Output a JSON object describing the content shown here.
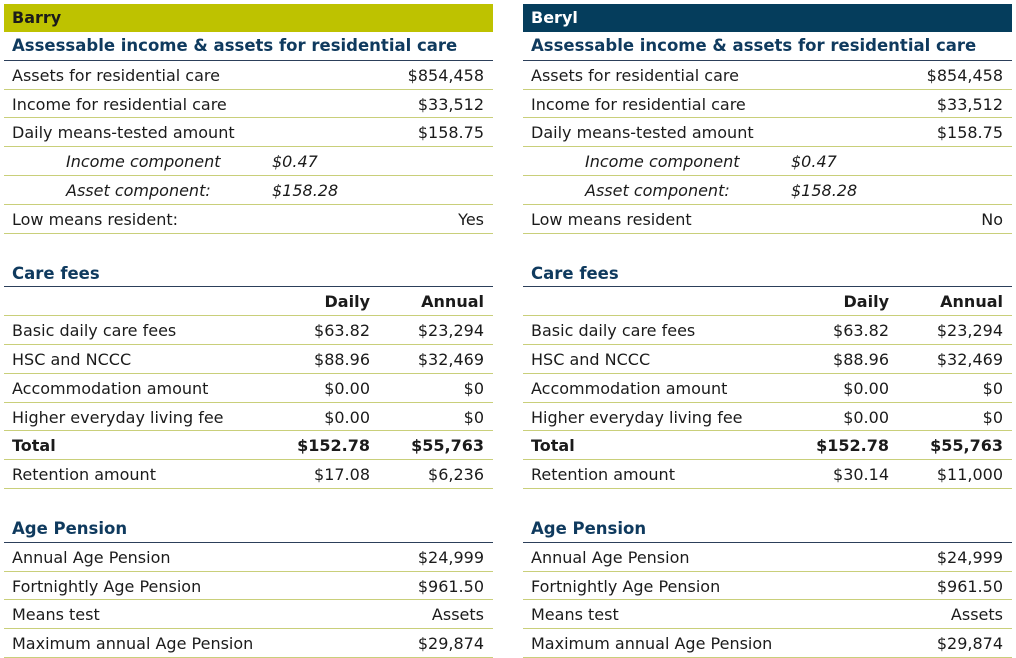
{
  "panels": [
    {
      "name": "Barry",
      "income": {
        "title": "Assessable income & assets for residential care",
        "rows": [
          {
            "label": "Assets for residential care",
            "value": "$854,458"
          },
          {
            "label": "Income for residential care",
            "value": "$33,512"
          },
          {
            "label": "Daily means-tested amount",
            "value": "$158.75"
          }
        ],
        "components": [
          {
            "label": "Income component",
            "value": "$0.47"
          },
          {
            "label": "Asset component:",
            "value": "$158.28"
          }
        ],
        "low_means": {
          "label": "Low means resident:",
          "value": "Yes"
        }
      },
      "care_fees": {
        "title": "Care fees",
        "col_daily": "Daily",
        "col_annual": "Annual",
        "rows": [
          {
            "label": "Basic daily care fees",
            "daily": "$63.82",
            "annual": "$23,294"
          },
          {
            "label": "HSC and NCCC",
            "daily": "$88.96",
            "annual": "$32,469"
          },
          {
            "label": "Accommodation amount",
            "daily": "$0.00",
            "annual": "$0"
          },
          {
            "label": "Higher everyday living fee",
            "daily": "$0.00",
            "annual": "$0"
          }
        ],
        "total": {
          "label": "Total",
          "daily": "$152.78",
          "annual": "$55,763"
        },
        "retention": {
          "label": "Retention amount",
          "daily": "$17.08",
          "annual": "$6,236"
        }
      },
      "age_pension": {
        "title": "Age Pension",
        "rows": [
          {
            "label": "Annual Age Pension",
            "value": "$24,999"
          },
          {
            "label": "Fortnightly Age Pension",
            "value": "$961.50"
          },
          {
            "label": "Means test",
            "value": "Assets"
          },
          {
            "label": "Maximum annual Age Pension",
            "value": "$29,874"
          }
        ]
      }
    },
    {
      "name": "Beryl",
      "income": {
        "title": "Assessable income & assets for residential care",
        "rows": [
          {
            "label": "Assets for residential care",
            "value": "$854,458"
          },
          {
            "label": "Income for residential care",
            "value": "$33,512"
          },
          {
            "label": "Daily means-tested amount",
            "value": "$158.75"
          }
        ],
        "components": [
          {
            "label": "Income component",
            "value": "$0.47"
          },
          {
            "label": "Asset component:",
            "value": "$158.28"
          }
        ],
        "low_means": {
          "label": "Low means resident",
          "value": "No"
        }
      },
      "care_fees": {
        "title": "Care fees",
        "col_daily": "Daily",
        "col_annual": "Annual",
        "rows": [
          {
            "label": "Basic daily care fees",
            "daily": "$63.82",
            "annual": "$23,294"
          },
          {
            "label": "HSC and NCCC",
            "daily": "$88.96",
            "annual": "$32,469"
          },
          {
            "label": "Accommodation amount",
            "daily": "$0.00",
            "annual": "$0"
          },
          {
            "label": "Higher everyday living fee",
            "daily": "$0.00",
            "annual": "$0"
          }
        ],
        "total": {
          "label": "Total",
          "daily": "$152.78",
          "annual": "$55,763"
        },
        "retention": {
          "label": "Retention amount",
          "daily": "$30.14",
          "annual": "$11,000"
        }
      },
      "age_pension": {
        "title": "Age Pension",
        "rows": [
          {
            "label": "Annual Age Pension",
            "value": "$24,999"
          },
          {
            "label": "Fortnightly Age Pension",
            "value": "$961.50"
          },
          {
            "label": "Means test",
            "value": "Assets"
          },
          {
            "label": "Maximum annual Age Pension",
            "value": "$29,874"
          }
        ]
      }
    }
  ]
}
